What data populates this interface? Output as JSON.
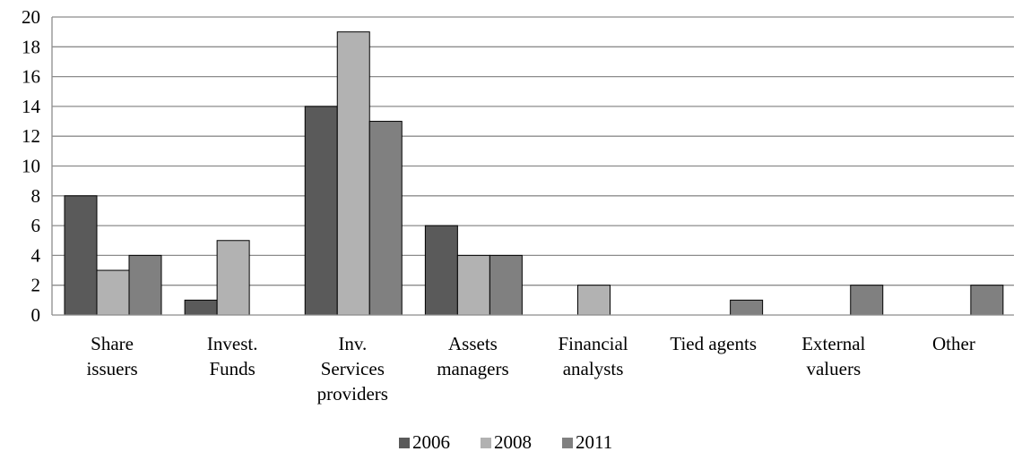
{
  "chart_data": {
    "type": "bar",
    "categories": [
      [
        "Share",
        "issuers"
      ],
      [
        "Invest.",
        "Funds"
      ],
      [
        "Inv.",
        "Services",
        "providers"
      ],
      [
        "Assets",
        "managers"
      ],
      [
        "Financial",
        "analysts"
      ],
      [
        "Tied agents"
      ],
      [
        "External",
        "valuers"
      ],
      [
        "Other"
      ]
    ],
    "series": [
      {
        "name": "2006",
        "color": "#5a5a5a",
        "values": [
          8,
          1,
          14,
          6,
          0,
          0,
          0,
          0
        ]
      },
      {
        "name": "2008",
        "color": "#b2b2b2",
        "values": [
          3,
          5,
          19,
          4,
          2,
          0,
          0,
          0
        ]
      },
      {
        "name": "2011",
        "color": "#808080",
        "values": [
          4,
          0,
          13,
          4,
          0,
          1,
          2,
          2
        ]
      }
    ],
    "ylim": [
      0,
      20
    ],
    "yticks": [
      0,
      2,
      4,
      6,
      8,
      10,
      12,
      14,
      16,
      18,
      20
    ],
    "grid": true,
    "legend": "bottom"
  }
}
